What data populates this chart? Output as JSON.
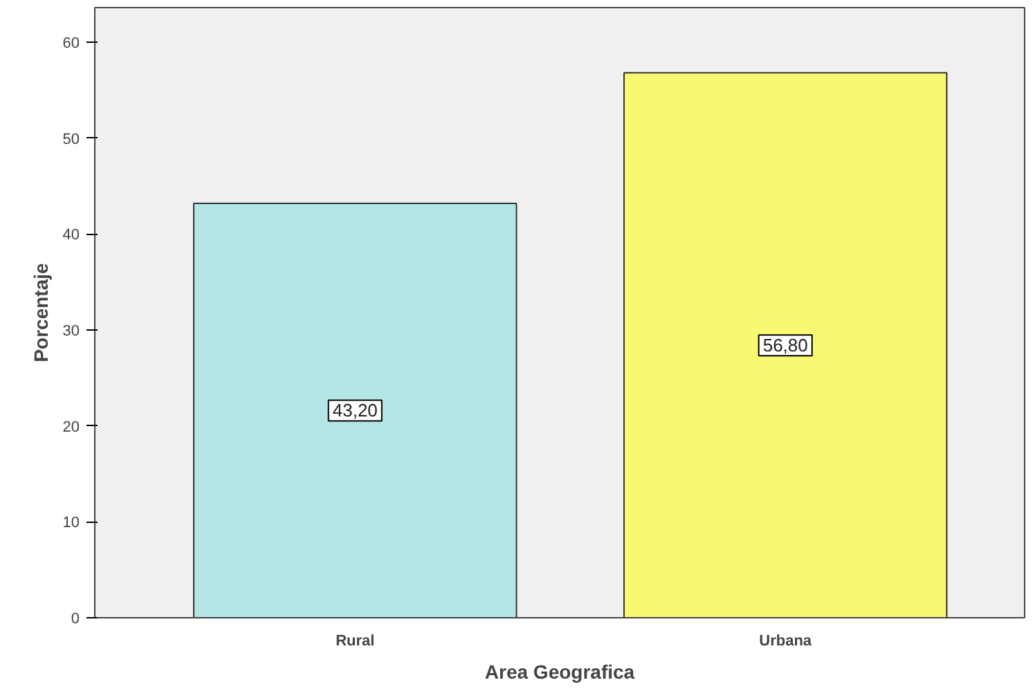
{
  "chart_data": {
    "type": "bar",
    "xlabel": "Area Geografica",
    "ylabel": "Porcentaje",
    "categories": [
      "Rural",
      "Urbana"
    ],
    "values": [
      43.2,
      56.8
    ],
    "colors": [
      "#b4e6e6",
      "#f9f871"
    ],
    "value_labels": [
      "43,20",
      "56,80"
    ],
    "ylim": [
      0,
      63.6
    ],
    "yticks": [
      0,
      10,
      20,
      30,
      40,
      50,
      60
    ],
    "grid": false
  }
}
